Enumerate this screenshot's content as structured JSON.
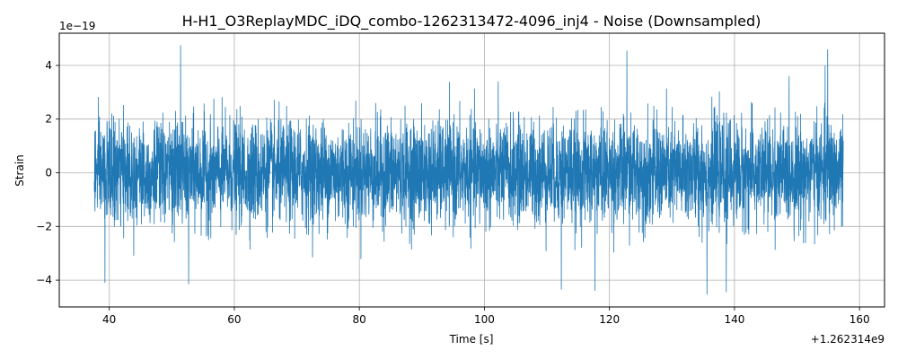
{
  "chart_data": {
    "type": "line",
    "title": "H-H1_O3ReplayMDC_iDQ_combo-1262313472-4096_inj4 - Noise (Downsampled)",
    "xlabel": "Time [s]",
    "ylabel": "Strain",
    "x_offset_label": "+1.262314e9",
    "y_scale_label": "1e−19",
    "xlim": [
      32,
      164
    ],
    "ylim": [
      -5,
      5.2
    ],
    "x_ticks": [
      40,
      60,
      80,
      100,
      120,
      140,
      160
    ],
    "y_ticks": [
      -4,
      -2,
      0,
      2,
      4
    ],
    "x_tick_labels": [
      "40",
      "60",
      "80",
      "100",
      "120",
      "140",
      "160"
    ],
    "y_tick_labels": [
      "−4",
      "−2",
      "0",
      "2",
      "4"
    ],
    "grid": true,
    "line_color": "#1f77b4",
    "series": [
      {
        "x_range": [
          37.6,
          157.4
        ],
        "peaks": [
          {
            "x": 51.4,
            "y": 4.75
          },
          {
            "x": 52.7,
            "y": -4.15
          },
          {
            "x": 39.3,
            "y": -4.1
          },
          {
            "x": 112.3,
            "y": -4.35
          },
          {
            "x": 117.7,
            "y": -4.4
          },
          {
            "x": 122.8,
            "y": 4.55
          },
          {
            "x": 135.6,
            "y": -4.55
          },
          {
            "x": 138.7,
            "y": -4.45
          },
          {
            "x": 154.5,
            "y": 4.0
          },
          {
            "x": 154.9,
            "y": 4.6
          }
        ]
      }
    ]
  }
}
